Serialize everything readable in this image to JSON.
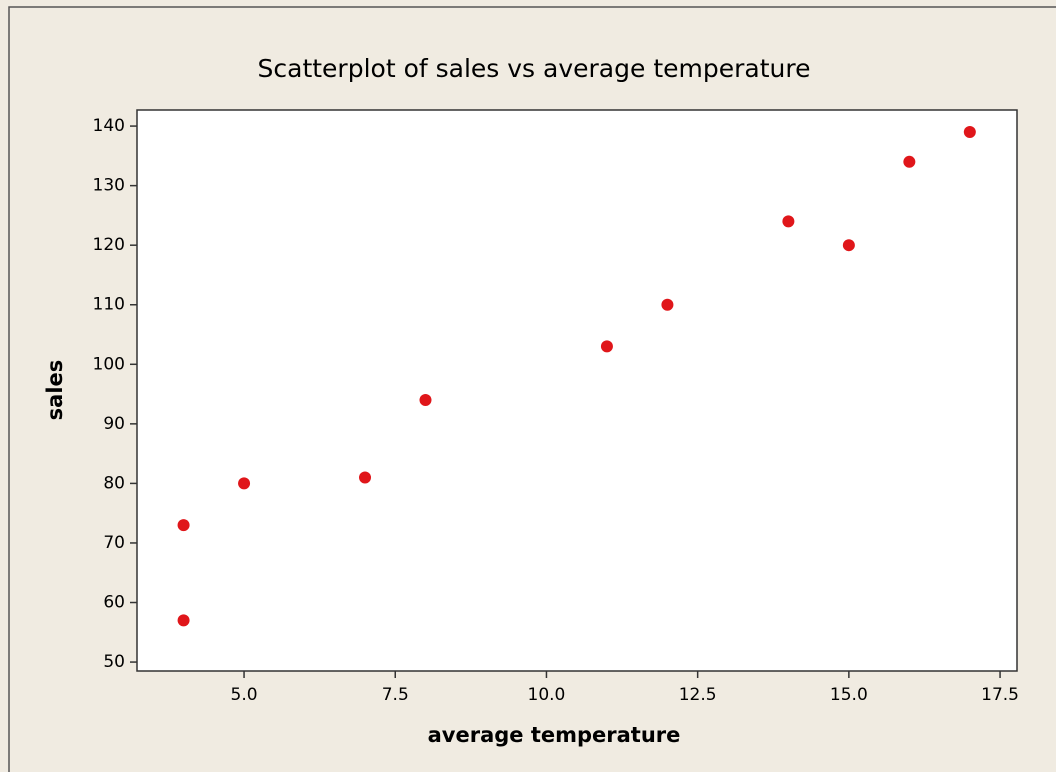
{
  "chart_data": {
    "type": "scatter",
    "title": "Scatterplot of sales vs average temperature",
    "x_label": "average temperature",
    "y_label": "sales",
    "x": [
      4,
      4,
      5,
      7,
      8,
      11,
      12,
      14,
      15,
      16,
      17
    ],
    "values": [
      73,
      57,
      80,
      81,
      94,
      103,
      110,
      124,
      120,
      134,
      139
    ],
    "color": "#e0161a",
    "xlim": [
      3.23,
      17.78
    ],
    "xticks": [
      {
        "value": 5,
        "label": "5.0"
      },
      7.5,
      {
        "value": 10,
        "label": "10.0"
      },
      12.5,
      {
        "value": 15,
        "label": "15.0"
      },
      17.5
    ],
    "ylim": [
      48.5,
      142.7
    ],
    "yticks": [
      50,
      60,
      70,
      80,
      90,
      100,
      110,
      120,
      130,
      140
    ]
  }
}
